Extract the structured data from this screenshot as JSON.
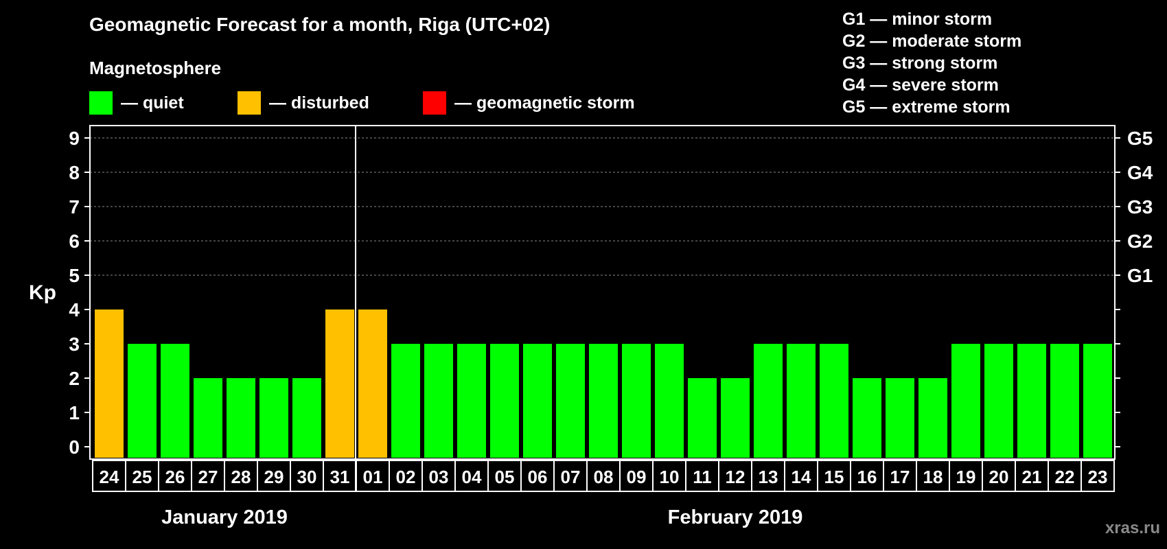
{
  "title": "Geomagnetic Forecast for a month, Riga (UTC+02)",
  "magnetosphere_label": "Magnetosphere",
  "legend": [
    {
      "color": "#00ff00",
      "label": "— quiet"
    },
    {
      "color": "#ffc000",
      "label": "— disturbed"
    },
    {
      "color": "#ff0000",
      "label": "— geomagnetic storm"
    }
  ],
  "storm_scale": [
    "G1 — minor storm",
    "G2 — moderate storm",
    "G3 — strong storm",
    "G4 — severe storm",
    "G5 — extreme storm"
  ],
  "watermark": "xras.ru",
  "chart_data": {
    "type": "bar",
    "title": "Geomagnetic Forecast for a month, Riga (UTC+02)",
    "ylabel": "Kp",
    "ylim": [
      0,
      9
    ],
    "yticks": [
      "0",
      "1",
      "2",
      "3",
      "4",
      "5",
      "6",
      "7",
      "8",
      "9"
    ],
    "right_axis_labels": [
      {
        "kp": 5,
        "label": "G1"
      },
      {
        "kp": 6,
        "label": "G2"
      },
      {
        "kp": 7,
        "label": "G3"
      },
      {
        "kp": 8,
        "label": "G4"
      },
      {
        "kp": 9,
        "label": "G5"
      }
    ],
    "categories": [
      "24",
      "25",
      "26",
      "27",
      "28",
      "29",
      "30",
      "31",
      "01",
      "02",
      "03",
      "04",
      "05",
      "06",
      "07",
      "08",
      "09",
      "10",
      "11",
      "12",
      "13",
      "14",
      "15",
      "16",
      "17",
      "18",
      "19",
      "20",
      "21",
      "22",
      "23"
    ],
    "values": [
      4,
      3,
      3,
      2,
      2,
      2,
      2,
      4,
      4,
      3,
      3,
      3,
      3,
      3,
      3,
      3,
      3,
      3,
      2,
      2,
      3,
      3,
      3,
      2,
      2,
      2,
      3,
      3,
      3,
      3,
      3
    ],
    "status": [
      "disturbed",
      "quiet",
      "quiet",
      "quiet",
      "quiet",
      "quiet",
      "quiet",
      "disturbed",
      "disturbed",
      "quiet",
      "quiet",
      "quiet",
      "quiet",
      "quiet",
      "quiet",
      "quiet",
      "quiet",
      "quiet",
      "quiet",
      "quiet",
      "quiet",
      "quiet",
      "quiet",
      "quiet",
      "quiet",
      "quiet",
      "quiet",
      "quiet",
      "quiet",
      "quiet",
      "quiet"
    ],
    "status_colors": {
      "quiet": "#00ff00",
      "disturbed": "#ffc000",
      "storm": "#ff0000"
    },
    "month_split_index": 8,
    "months": [
      {
        "label": "January 2019",
        "start": 0,
        "end": 7
      },
      {
        "label": "February 2019",
        "start": 8,
        "end": 30
      }
    ],
    "grid": true
  }
}
